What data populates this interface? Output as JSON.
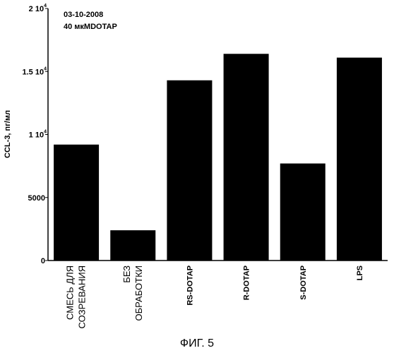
{
  "chart_data": {
    "type": "bar",
    "categories": [
      [
        "СМЕСЬ ДЛЯ",
        "СОЗРЕВАНИЯ"
      ],
      [
        "БЕЗ",
        "ОБРАБОТКИ"
      ],
      [
        "RS-DOTAP"
      ],
      [
        "R-DOTAP"
      ],
      [
        "S-DOTAP"
      ],
      [
        "LPS"
      ]
    ],
    "values": [
      9200,
      2400,
      14300,
      16400,
      7700,
      16100
    ],
    "ylim": [
      0,
      20000
    ],
    "yticks": [
      {
        "value": 0,
        "label": "0",
        "sup": ""
      },
      {
        "value": 5000,
        "label": "5000",
        "sup": ""
      },
      {
        "value": 10000,
        "label": "1 10",
        "sup": "4"
      },
      {
        "value": 15000,
        "label": "1.5 10",
        "sup": "4"
      },
      {
        "value": 20000,
        "label": "2 10",
        "sup": "4"
      }
    ],
    "ylabel": "CCL-3, пг/мл",
    "xlabel": "",
    "annotations": [
      "03-10-2008",
      "40 мкМDOTAP"
    ],
    "bar_color": "#000000",
    "grid": false
  },
  "caption": "ФИГ. 5"
}
